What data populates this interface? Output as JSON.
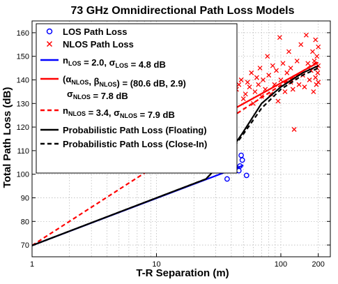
{
  "chart_data": {
    "type": "scatter",
    "title": "73 GHz Omnidirectional Path Loss Models",
    "xlabel": "T-R Separation (m)",
    "ylabel": "Total Path Loss (dB)",
    "xscale": "log",
    "xlim": [
      1,
      250
    ],
    "ylim": [
      65,
      165
    ],
    "grid": true,
    "legend_position": "top-left",
    "x_ticks": [
      {
        "value": 1,
        "label": "1"
      },
      {
        "value": 10,
        "label": "10"
      },
      {
        "value": 100,
        "label": "100"
      },
      {
        "value": 200,
        "label": "200"
      }
    ],
    "y_ticks": [
      {
        "value": 70,
        "label": "70"
      },
      {
        "value": 80,
        "label": "80"
      },
      {
        "value": 90,
        "label": "90"
      },
      {
        "value": 100,
        "label": "100"
      },
      {
        "value": 110,
        "label": "110"
      },
      {
        "value": 120,
        "label": "120"
      },
      {
        "value": 130,
        "label": "130"
      },
      {
        "value": 140,
        "label": "140"
      },
      {
        "value": 150,
        "label": "150"
      },
      {
        "value": 160,
        "label": "160"
      }
    ],
    "series": [
      {
        "name": "LOS Path Loss",
        "kind": "marker",
        "marker": "circle",
        "color": "#0000ff",
        "points": [
          [
            27,
            103.5
          ],
          [
            29,
            108.5
          ],
          [
            37,
            98
          ],
          [
            46,
            101.5
          ],
          [
            47,
            103.5
          ],
          [
            48,
            108
          ],
          [
            49,
            106
          ],
          [
            53,
            99.5
          ]
        ]
      },
      {
        "name": "NLOS Path Loss",
        "kind": "marker",
        "marker": "x",
        "color": "#ff0000",
        "points": [
          [
            44,
            136
          ],
          [
            46,
            138
          ],
          [
            48,
            140
          ],
          [
            50,
            132
          ],
          [
            52,
            134
          ],
          [
            54,
            139
          ],
          [
            56,
            137
          ],
          [
            58,
            143
          ],
          [
            60,
            130
          ],
          [
            62,
            135
          ],
          [
            64,
            141
          ],
          [
            66,
            138
          ],
          [
            68,
            145
          ],
          [
            70,
            133
          ],
          [
            72,
            140
          ],
          [
            75,
            136
          ],
          [
            78,
            150
          ],
          [
            80,
            142
          ],
          [
            83,
            134
          ],
          [
            86,
            146
          ],
          [
            89,
            138
          ],
          [
            92,
            144
          ],
          [
            95,
            131
          ],
          [
            98,
            158
          ],
          [
            100,
            140
          ],
          [
            104,
            147
          ],
          [
            108,
            135
          ],
          [
            112,
            143
          ],
          [
            116,
            152
          ],
          [
            120,
            139
          ],
          [
            120,
            145
          ],
          [
            125,
            136
          ],
          [
            130,
            141
          ],
          [
            128,
            119
          ],
          [
            135,
            148
          ],
          [
            140,
            138
          ],
          [
            145,
            155
          ],
          [
            150,
            142
          ],
          [
            155,
            137
          ],
          [
            160,
            159
          ],
          [
            165,
            147
          ],
          [
            170,
            140
          ],
          [
            175,
            144
          ],
          [
            180,
            152
          ],
          [
            183,
            135
          ],
          [
            186,
            148
          ],
          [
            190,
            157
          ],
          [
            193,
            138
          ],
          [
            195,
            150
          ],
          [
            198,
            143
          ],
          [
            200,
            146
          ],
          [
            200,
            139
          ],
          [
            200,
            154
          ],
          [
            190,
            141
          ],
          [
            195,
            145
          ]
        ]
      },
      {
        "name": "n_LOS = 2.0, σ_LOS = 4.8 dB",
        "legend_label": {
          "parts": [
            [
              "n",
              ""
            ],
            [
              "LOS",
              "sub"
            ],
            [
              " = 2.0, ",
              ""
            ],
            [
              "σ",
              ""
            ],
            [
              "LOS",
              "sub"
            ],
            [
              " = 4.8 dB",
              ""
            ]
          ]
        },
        "kind": "line",
        "color": "#0000ff",
        "dash": "solid",
        "points": [
          [
            1,
            69.8
          ],
          [
            50,
            103.8
          ]
        ]
      },
      {
        "name": "(α_NLOS, β_NLOS) = (80.6 dB, 2.9) σ_NLOS = 7.8 dB",
        "legend_label": {
          "parts": [
            [
              "(",
              ""
            ],
            [
              "α",
              ""
            ],
            [
              "NLOS",
              "sub"
            ],
            [
              ", ",
              ""
            ],
            [
              "β",
              ""
            ],
            [
              "NLOS",
              "sub"
            ],
            [
              ") = (80.6 dB, 2.9)",
              ""
            ]
          ]
        },
        "legend_label_line2": {
          "parts": [
            [
              "σ",
              ""
            ],
            [
              "NLOS",
              "sub"
            ],
            [
              " = 7.8 dB",
              ""
            ]
          ]
        },
        "kind": "line",
        "color": "#ff0000",
        "dash": "solid",
        "points": [
          [
            40,
            127.1
          ],
          [
            200,
            147.4
          ]
        ]
      },
      {
        "name": "n_NLOS = 3.4, σ_NLOS = 7.9 dB",
        "legend_label": {
          "parts": [
            [
              "n",
              ""
            ],
            [
              "NLOS",
              "sub"
            ],
            [
              " = 3.4, ",
              ""
            ],
            [
              "σ",
              ""
            ],
            [
              "NLOS",
              "sub"
            ],
            [
              " = 7.9 dB",
              ""
            ]
          ]
        },
        "kind": "line",
        "color": "#ff0000",
        "dash": "dashed",
        "points": [
          [
            1,
            69.8
          ],
          [
            200,
            148.0
          ]
        ]
      },
      {
        "name": "Probabilistic Path Loss (Floating)",
        "kind": "line",
        "color": "#000000",
        "dash": "solid",
        "points": [
          [
            1,
            69.8
          ],
          [
            25,
            98
          ],
          [
            35,
            106
          ],
          [
            50,
            118
          ],
          [
            70,
            130
          ],
          [
            100,
            137
          ],
          [
            150,
            143
          ],
          [
            200,
            146
          ]
        ]
      },
      {
        "name": "Probabilistic Path Loss (Close-In)",
        "kind": "line",
        "color": "#000000",
        "dash": "dashed",
        "points": [
          [
            1,
            69.8
          ],
          [
            25,
            98
          ],
          [
            35,
            106
          ],
          [
            50,
            117
          ],
          [
            70,
            128
          ],
          [
            100,
            136
          ],
          [
            150,
            142
          ],
          [
            200,
            145
          ]
        ]
      }
    ]
  }
}
